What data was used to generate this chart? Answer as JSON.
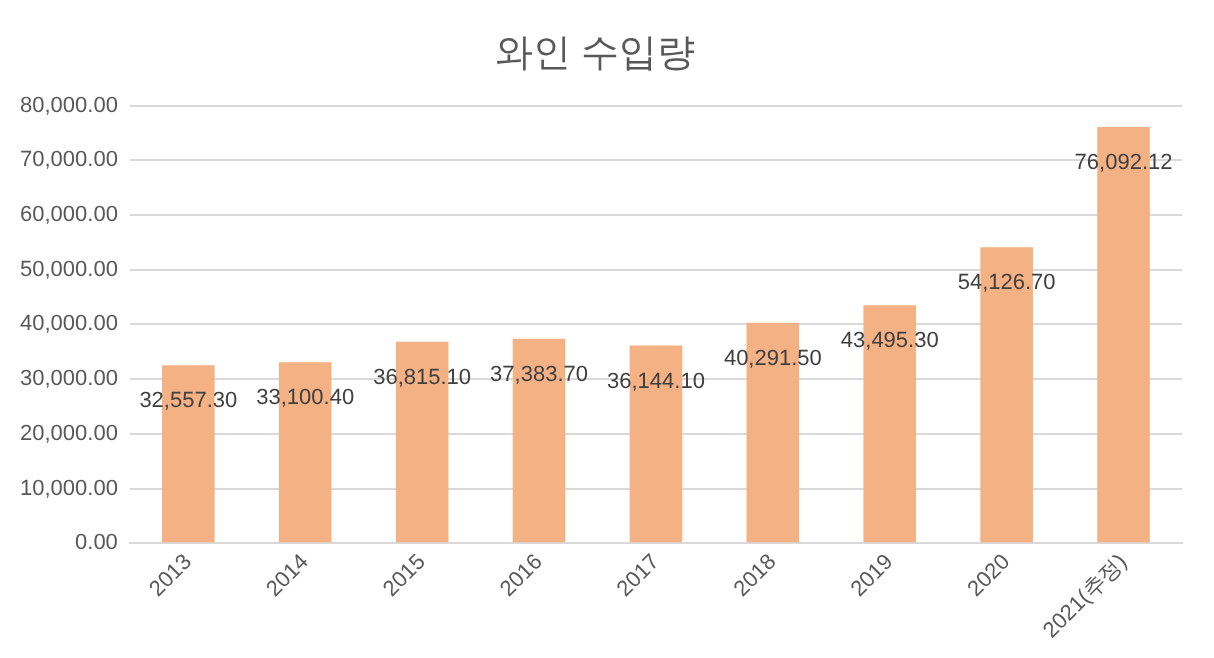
{
  "chart_data": {
    "type": "bar",
    "title": "와인 수입량",
    "categories": [
      "2013",
      "2014",
      "2015",
      "2016",
      "2017",
      "2018",
      "2019",
      "2020",
      "2021(추정)"
    ],
    "values": [
      32557.3,
      33100.4,
      36815.1,
      37383.7,
      36144.1,
      40291.5,
      43495.3,
      54126.7,
      76092.12
    ],
    "value_labels": [
      "32,557.30",
      "33,100.40",
      "36,815.10",
      "37,383.70",
      "36,144.10",
      "40,291.50",
      "43,495.30",
      "54,126.70",
      "76,092.12"
    ],
    "color": "#f4b183",
    "ylim": [
      0,
      80000
    ],
    "yticks": [
      {
        "value": 0,
        "label": "0.00"
      },
      {
        "value": 10000,
        "label": "10,000.00"
      },
      {
        "value": 20000,
        "label": "20,000.00"
      },
      {
        "value": 30000,
        "label": "30,000.00"
      },
      {
        "value": 40000,
        "label": "40,000.00"
      },
      {
        "value": 50000,
        "label": "50,000.00"
      },
      {
        "value": 60000,
        "label": "60,000.00"
      },
      {
        "value": 70000,
        "label": "70,000.00"
      },
      {
        "value": 80000,
        "label": "80,000.00"
      }
    ],
    "grid": "y",
    "legend": false
  }
}
